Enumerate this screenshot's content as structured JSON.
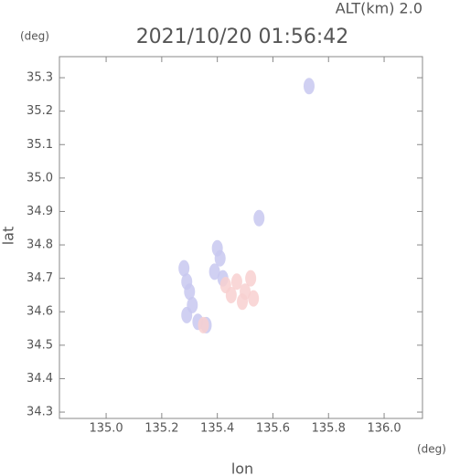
{
  "chart_data": {
    "type": "scatter",
    "title": "2021/10/20 01:56:42",
    "subtitle": "ALT(km) 2.0",
    "x_label": "lon",
    "y_label": "lat",
    "x_unit": "(deg)",
    "y_unit": "(deg)",
    "xlim": [
      134.832,
      136.138
    ],
    "ylim": [
      34.281,
      35.363
    ],
    "xticks": [
      {
        "value": 135.0,
        "label": "135.0"
      },
      135.2,
      135.4,
      135.6,
      135.8,
      {
        "value": 136.0,
        "label": "136.0"
      }
    ],
    "yticks": [
      35.3,
      35.2,
      35.1,
      {
        "value": 35.0,
        "label": "35.0"
      },
      34.9,
      34.8,
      34.7,
      34.6,
      34.5,
      34.4,
      34.3
    ],
    "series": [
      {
        "color": "#c8c8f0",
        "x": [
          135.73,
          135.28,
          135.29,
          135.3,
          135.31,
          135.29,
          135.4,
          135.41,
          135.39,
          135.42,
          135.33,
          135.36,
          135.55
        ],
        "y": [
          35.275,
          34.73,
          34.69,
          34.66,
          34.62,
          34.59,
          34.79,
          34.76,
          34.72,
          34.7,
          34.57,
          34.56,
          34.88
        ]
      },
      {
        "color": "#f8d0d0",
        "x": [
          135.47,
          135.5,
          135.53,
          135.45,
          135.49,
          135.52,
          135.43,
          135.35
        ],
        "y": [
          34.69,
          34.66,
          34.64,
          34.65,
          34.63,
          34.7,
          34.68,
          34.56
        ]
      }
    ]
  }
}
